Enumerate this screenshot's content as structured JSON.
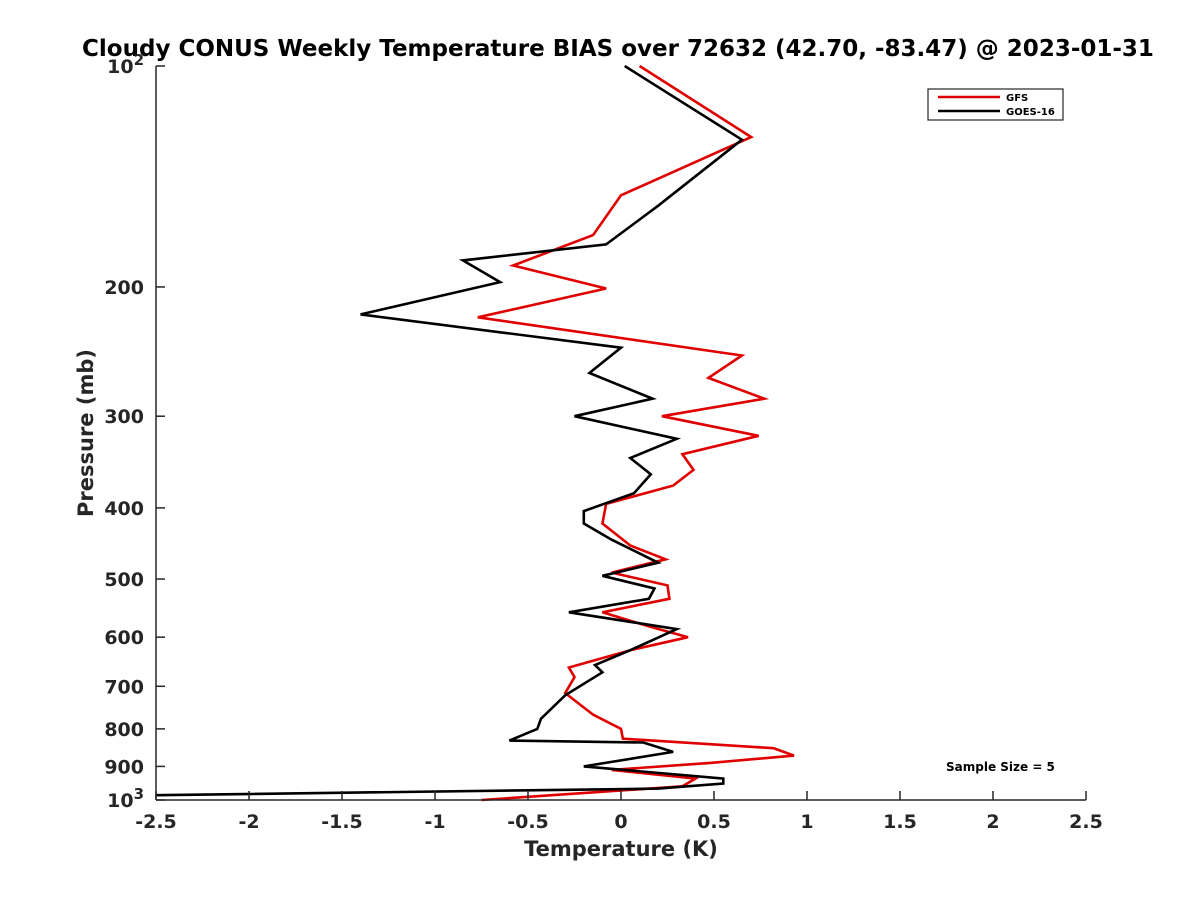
{
  "chart_data": {
    "type": "line",
    "title": "Cloudy CONUS Weekly Temperature BIAS over 72632 (42.70, -83.47) @ 2023-01-31",
    "xlabel": "Temperature (K)",
    "ylabel": "Pressure (mb)",
    "xlim": [
      -2.5,
      2.5
    ],
    "ylim": [
      100,
      1000
    ],
    "y_scale": "log",
    "y_reversed": true,
    "grid": false,
    "legend_position": "top-right",
    "x_ticks": [
      -2.5,
      -2,
      -1.5,
      -1,
      -0.5,
      0,
      0.5,
      1,
      1.5,
      2,
      2.5
    ],
    "x_tick_labels": [
      "-2.5",
      "-2",
      "-1.5",
      "-1",
      "-0.5",
      "0",
      "0.5",
      "1",
      "1.5",
      "2",
      "2.5"
    ],
    "y_ticks": [
      100,
      200,
      300,
      400,
      500,
      600,
      700,
      800,
      900,
      1000
    ],
    "y_tick_labels": [
      {
        "base": "10",
        "exp": "2"
      },
      {
        "base": "200",
        "exp": ""
      },
      {
        "base": "300",
        "exp": ""
      },
      {
        "base": "400",
        "exp": ""
      },
      {
        "base": "500",
        "exp": ""
      },
      {
        "base": "600",
        "exp": ""
      },
      {
        "base": "700",
        "exp": ""
      },
      {
        "base": "800",
        "exp": ""
      },
      {
        "base": "900",
        "exp": ""
      },
      {
        "base": "10",
        "exp": "3"
      }
    ],
    "annotation": "Sample Size = 5",
    "series": [
      {
        "name": "GFS",
        "color": "#e00000",
        "points": [
          [
            0.1,
            100
          ],
          [
            0.7,
            125
          ],
          [
            0.0,
            150
          ],
          [
            -0.15,
            170
          ],
          [
            -0.58,
            187
          ],
          [
            -0.08,
            201
          ],
          [
            -0.77,
            220
          ],
          [
            0.65,
            248
          ],
          [
            0.47,
            266
          ],
          [
            0.77,
            284
          ],
          [
            0.22,
            300
          ],
          [
            0.74,
            319
          ],
          [
            0.33,
            338
          ],
          [
            0.39,
            355
          ],
          [
            0.28,
            373
          ],
          [
            -0.08,
            395
          ],
          [
            -0.1,
            420
          ],
          [
            0.05,
            450
          ],
          [
            0.24,
            470
          ],
          [
            -0.05,
            490
          ],
          [
            0.25,
            510
          ],
          [
            0.26,
            532
          ],
          [
            -0.1,
            555
          ],
          [
            0.15,
            580
          ],
          [
            0.36,
            600
          ],
          [
            0.05,
            625
          ],
          [
            -0.28,
            660
          ],
          [
            -0.25,
            680
          ],
          [
            -0.3,
            715
          ],
          [
            -0.15,
            765
          ],
          [
            0.0,
            800
          ],
          [
            0.01,
            825
          ],
          [
            0.82,
            850
          ],
          [
            0.93,
            870
          ],
          [
            0.48,
            890
          ],
          [
            -0.05,
            910
          ],
          [
            0.4,
            935
          ],
          [
            0.33,
            958
          ],
          [
            -0.75,
            1000
          ]
        ]
      },
      {
        "name": "GOES-16",
        "color": "#000000",
        "points": [
          [
            0.02,
            100
          ],
          [
            0.65,
            126
          ],
          [
            0.2,
            155
          ],
          [
            -0.08,
            175
          ],
          [
            -0.85,
            184
          ],
          [
            -0.65,
            197
          ],
          [
            -1.4,
            218
          ],
          [
            0.0,
            242
          ],
          [
            -0.17,
            262
          ],
          [
            0.17,
            284
          ],
          [
            -0.25,
            300
          ],
          [
            0.3,
            322
          ],
          [
            0.05,
            342
          ],
          [
            0.16,
            360
          ],
          [
            0.07,
            382
          ],
          [
            -0.2,
            404
          ],
          [
            -0.2,
            420
          ],
          [
            -0.05,
            442
          ],
          [
            0.2,
            475
          ],
          [
            -0.1,
            495
          ],
          [
            0.18,
            515
          ],
          [
            0.15,
            532
          ],
          [
            -0.28,
            555
          ],
          [
            0.3,
            585
          ],
          [
            0.05,
            625
          ],
          [
            -0.14,
            655
          ],
          [
            -0.1,
            670
          ],
          [
            -0.3,
            720
          ],
          [
            -0.43,
            775
          ],
          [
            -0.45,
            800
          ],
          [
            -0.6,
            830
          ],
          [
            0.12,
            835
          ],
          [
            0.28,
            860
          ],
          [
            -0.2,
            900
          ],
          [
            0.55,
            935
          ],
          [
            0.55,
            950
          ],
          [
            0.2,
            965
          ],
          [
            -2.5,
            985
          ]
        ]
      }
    ]
  }
}
